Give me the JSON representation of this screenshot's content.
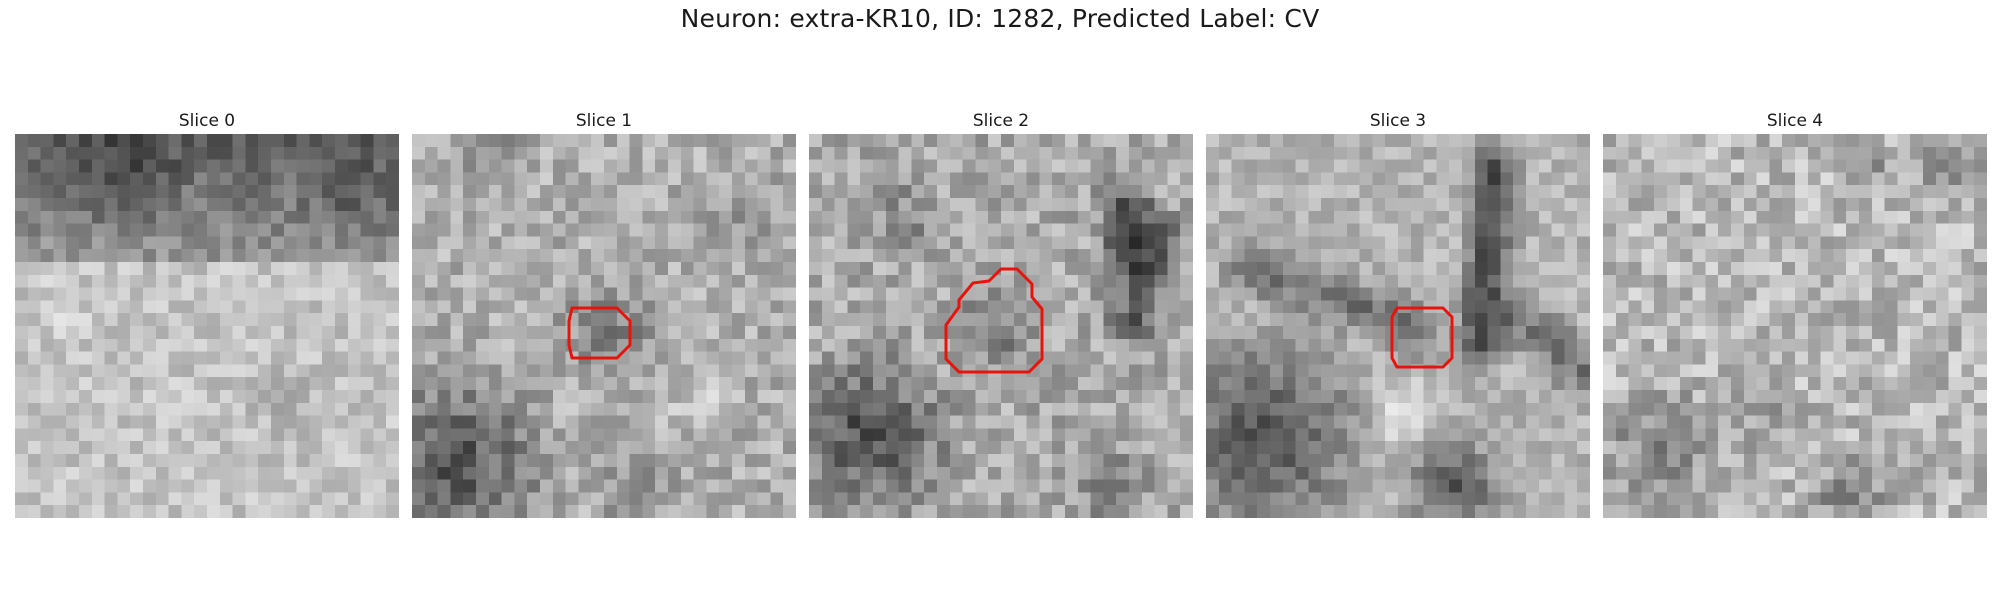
{
  "figure": {
    "title": "Neuron: extra-KR10, ID: 1282, Predicted Label: CV"
  },
  "colors": {
    "roi": "#e8140c",
    "background": "#ffffff"
  },
  "slices": [
    {
      "label": "Slice 0",
      "has_roi": false
    },
    {
      "label": "Slice 1",
      "has_roi": true
    },
    {
      "label": "Slice 2",
      "has_roi": true
    },
    {
      "label": "Slice 3",
      "has_roi": true
    },
    {
      "label": "Slice 4",
      "has_roi": false
    }
  ]
}
